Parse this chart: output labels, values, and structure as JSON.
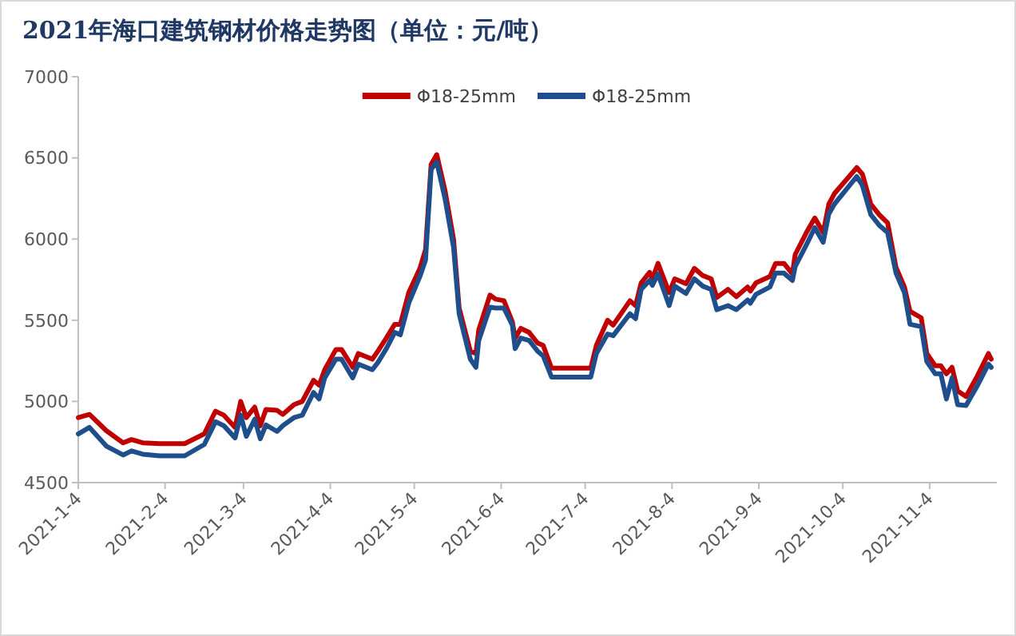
{
  "chart_data": {
    "type": "line",
    "title": "2021年海口建筑钢材价格走势图（单位：元/吨）",
    "x": [
      "2021-01-04",
      "2021-01-08",
      "2021-01-14",
      "2021-01-20",
      "2021-01-23",
      "2021-01-27",
      "2021-02-02",
      "2021-02-11",
      "2021-02-18",
      "2021-02-22",
      "2021-02-25",
      "2021-03-01",
      "2021-03-03",
      "2021-03-05",
      "2021-03-08",
      "2021-03-10",
      "2021-03-12",
      "2021-03-16",
      "2021-03-18",
      "2021-03-22",
      "2021-03-25",
      "2021-03-29",
      "2021-03-31",
      "2021-04-02",
      "2021-04-06",
      "2021-04-08",
      "2021-04-12",
      "2021-04-14",
      "2021-04-19",
      "2021-04-21",
      "2021-04-24",
      "2021-04-27",
      "2021-04-29",
      "2021-05-02",
      "2021-05-06",
      "2021-05-08",
      "2021-05-10",
      "2021-05-12",
      "2021-05-15",
      "2021-05-18",
      "2021-05-20",
      "2021-05-24",
      "2021-05-26",
      "2021-05-27",
      "2021-05-31",
      "2021-06-02",
      "2021-06-05",
      "2021-06-08",
      "2021-06-09",
      "2021-06-11",
      "2021-06-14",
      "2021-06-17",
      "2021-06-19",
      "2021-06-22",
      "2021-07-06",
      "2021-07-08",
      "2021-07-12",
      "2021-07-14",
      "2021-07-20",
      "2021-07-22",
      "2021-07-24",
      "2021-07-27",
      "2021-07-28",
      "2021-07-30",
      "2021-08-03",
      "2021-08-05",
      "2021-08-09",
      "2021-08-12",
      "2021-08-15",
      "2021-08-18",
      "2021-08-20",
      "2021-08-24",
      "2021-08-27",
      "2021-08-31",
      "2021-09-01",
      "2021-09-03",
      "2021-09-08",
      "2021-09-10",
      "2021-09-13",
      "2021-09-16",
      "2021-09-17",
      "2021-09-21",
      "2021-09-24",
      "2021-09-27",
      "2021-09-29",
      "2021-10-01",
      "2021-10-09",
      "2021-10-11",
      "2021-10-14",
      "2021-10-17",
      "2021-10-20",
      "2021-10-23",
      "2021-10-26",
      "2021-10-28",
      "2021-11-01",
      "2021-11-03",
      "2021-11-06",
      "2021-11-08",
      "2021-11-10",
      "2021-11-12",
      "2021-11-14",
      "2021-11-17",
      "2021-11-21",
      "2021-11-25",
      "2021-11-26"
    ],
    "series": [
      {
        "name": "Φ18-25mm",
        "color": "#c00000",
        "values": [
          4900,
          4920,
          4820,
          4745,
          4765,
          4745,
          4740,
          4740,
          4800,
          4940,
          4915,
          4840,
          5000,
          4900,
          4965,
          4850,
          4950,
          4945,
          4920,
          4980,
          5000,
          5130,
          5100,
          5195,
          5320,
          5320,
          5210,
          5295,
          5260,
          5310,
          5390,
          5475,
          5475,
          5670,
          5820,
          5935,
          6460,
          6520,
          6295,
          6000,
          5575,
          5310,
          5295,
          5440,
          5655,
          5630,
          5620,
          5490,
          5390,
          5450,
          5425,
          5360,
          5345,
          5205,
          5205,
          5345,
          5500,
          5470,
          5620,
          5590,
          5730,
          5795,
          5755,
          5850,
          5670,
          5755,
          5725,
          5820,
          5775,
          5755,
          5640,
          5690,
          5645,
          5705,
          5680,
          5730,
          5770,
          5850,
          5850,
          5785,
          5905,
          6040,
          6130,
          6040,
          6215,
          6280,
          6440,
          6400,
          6215,
          6150,
          6100,
          5825,
          5705,
          5555,
          5515,
          5295,
          5220,
          5220,
          5170,
          5210,
          5065,
          5030,
          5155,
          5295,
          5260
        ]
      },
      {
        "name": "Φ18-25mm",
        "color": "#1f4e8c",
        "values": [
          4800,
          4840,
          4725,
          4670,
          4695,
          4675,
          4665,
          4665,
          4735,
          4875,
          4850,
          4775,
          4915,
          4785,
          4890,
          4770,
          4855,
          4815,
          4850,
          4900,
          4915,
          5055,
          5015,
          5145,
          5260,
          5260,
          5145,
          5230,
          5195,
          5240,
          5325,
          5425,
          5410,
          5605,
          5770,
          5870,
          6430,
          6475,
          6245,
          5950,
          5540,
          5260,
          5210,
          5375,
          5580,
          5575,
          5575,
          5470,
          5325,
          5390,
          5375,
          5310,
          5280,
          5150,
          5150,
          5295,
          5415,
          5405,
          5540,
          5510,
          5690,
          5745,
          5715,
          5785,
          5590,
          5710,
          5665,
          5755,
          5710,
          5690,
          5565,
          5590,
          5565,
          5625,
          5605,
          5660,
          5705,
          5790,
          5790,
          5745,
          5830,
          5965,
          6070,
          5980,
          6155,
          6215,
          6385,
          6330,
          6150,
          6085,
          6040,
          5790,
          5670,
          5475,
          5460,
          5245,
          5170,
          5170,
          5015,
          5145,
          4980,
          4975,
          5095,
          5230,
          5210
        ]
      }
    ],
    "xlim": [
      "2021-01-04",
      "2021-11-28"
    ],
    "xticks": [
      {
        "value": "2021-01-04",
        "label": "2021-1-4"
      },
      {
        "value": "2021-02-04",
        "label": "2021-2-4"
      },
      {
        "value": "2021-03-04",
        "label": "2021-3-4"
      },
      {
        "value": "2021-04-04",
        "label": "2021-4-4"
      },
      {
        "value": "2021-05-04",
        "label": "2021-5-4"
      },
      {
        "value": "2021-06-04",
        "label": "2021-6-4"
      },
      {
        "value": "2021-07-04",
        "label": "2021-7-4"
      },
      {
        "value": "2021-08-04",
        "label": "2021-8-4"
      },
      {
        "value": "2021-09-04",
        "label": "2021-9-4"
      },
      {
        "value": "2021-10-04",
        "label": "2021-10-4"
      },
      {
        "value": "2021-11-04",
        "label": "2021-11-4"
      }
    ],
    "ylim": [
      4500,
      7000
    ],
    "yticks": [
      4500,
      5000,
      5500,
      6000,
      6500,
      7000
    ],
    "grid": false,
    "legend": "top",
    "marker": "none",
    "line_style": "solid"
  }
}
